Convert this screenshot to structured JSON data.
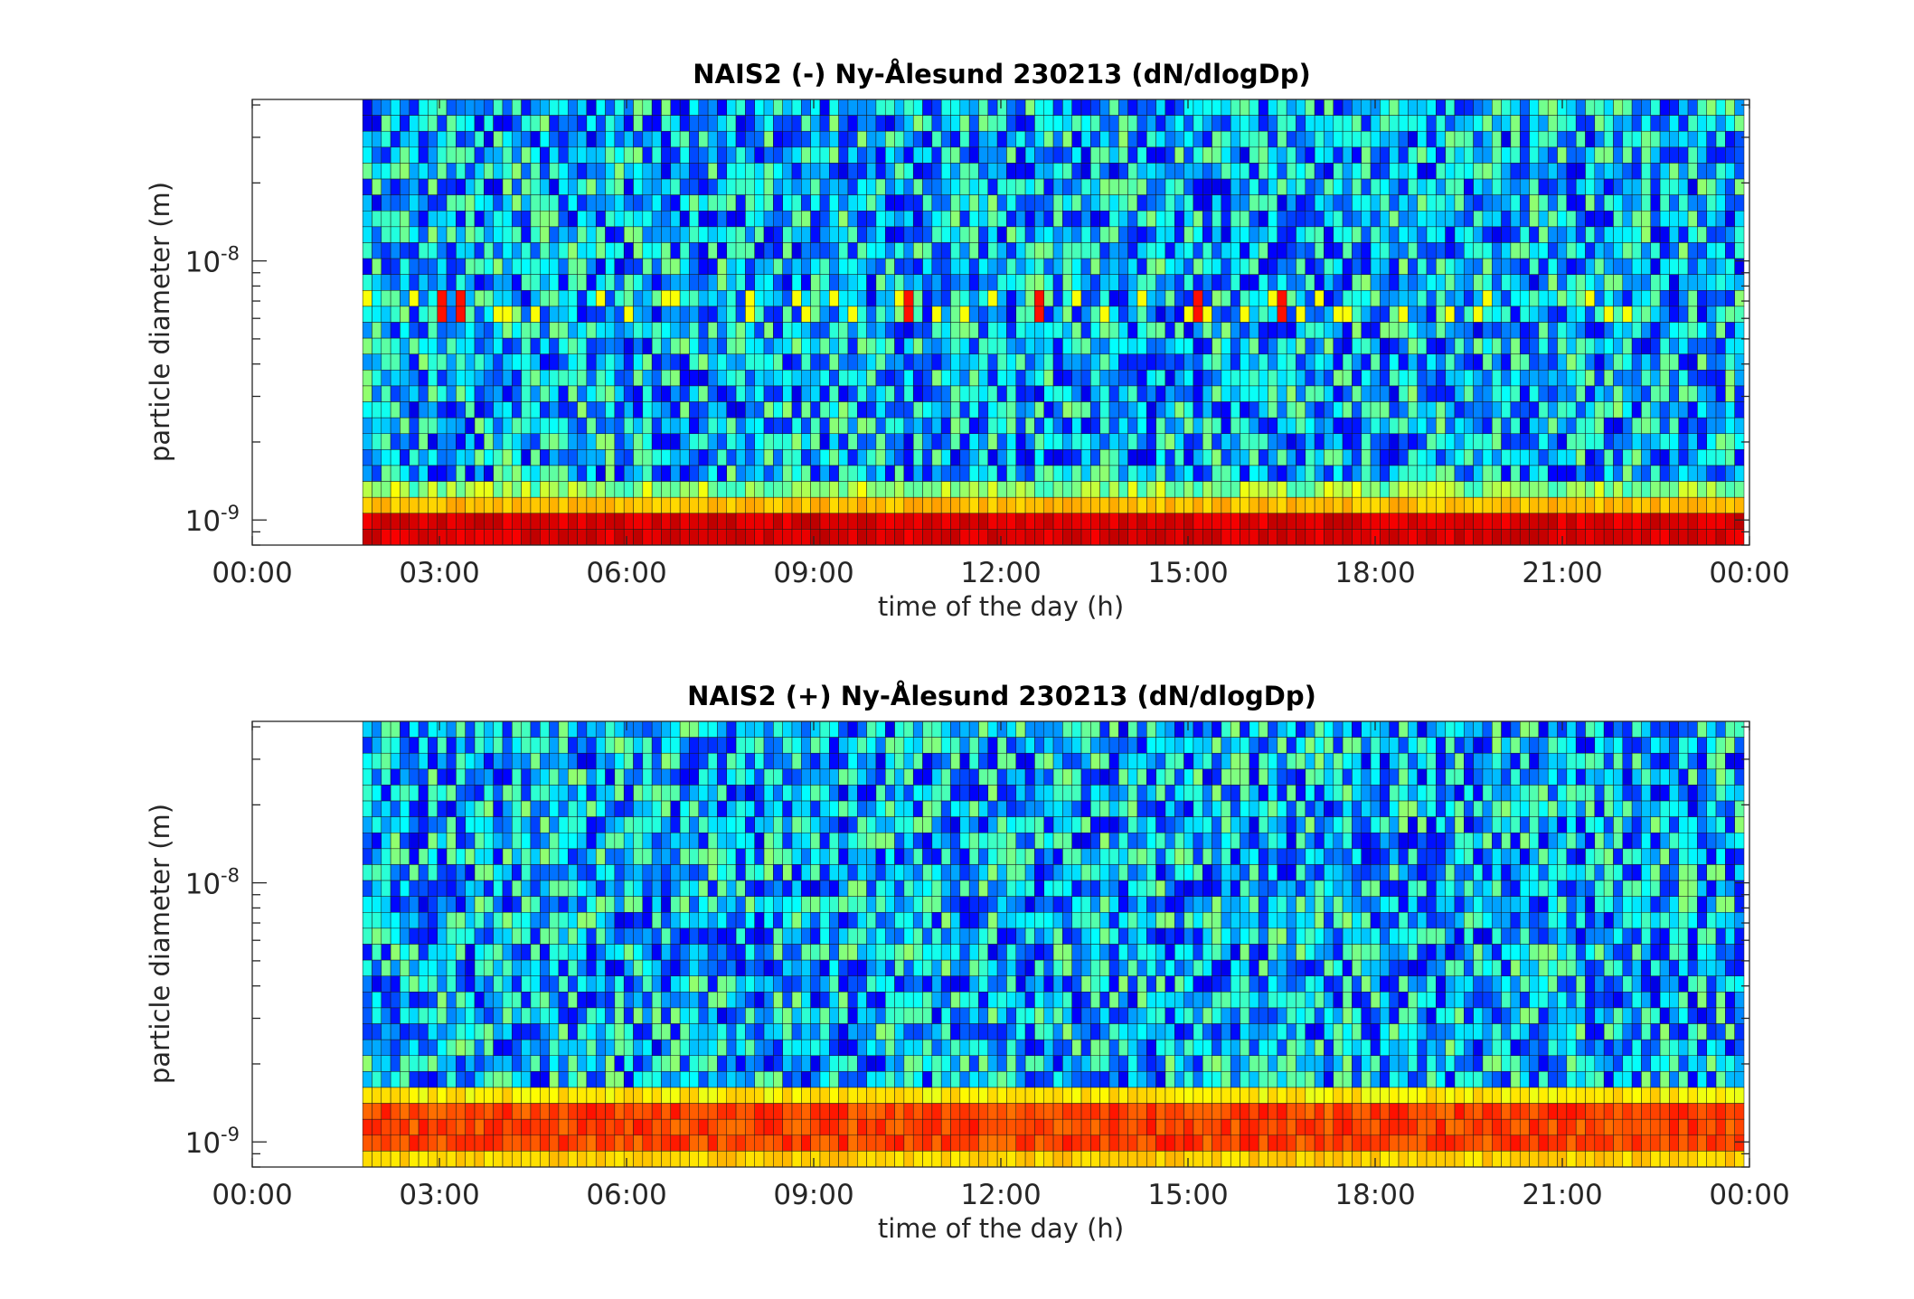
{
  "chart_data": [
    {
      "type": "heatmap",
      "title": "NAIS2 (-) Ny-Ålesund 230213 (dN/dlogDp)",
      "xlabel": "time of the day (h)",
      "ylabel": "particle diameter (m)",
      "x_ticks": [
        "00:00",
        "03:00",
        "06:00",
        "09:00",
        "12:00",
        "15:00",
        "18:00",
        "21:00",
        "00:00"
      ],
      "y_ticks": [
        {
          "base": "10",
          "exp": "-9",
          "value": 1e-09
        },
        {
          "base": "10",
          "exp": "-8",
          "value": 1e-08
        }
      ],
      "x_range_hours": [
        0,
        24
      ],
      "y_range_m": [
        8e-10,
        4.2e-08
      ],
      "y_scale": "log",
      "data_start_hour": 1.77,
      "colormap": "jet",
      "colors": [
        "#00008f",
        "#0000ff",
        "#0080ff",
        "#00ffff",
        "#80ff80",
        "#ffff00",
        "#ff8000",
        "#ff0000",
        "#800000"
      ],
      "hotspots": [
        {
          "hour": 3.0,
          "diameter_nm": 6.4
        },
        {
          "hour": 3.2,
          "diameter_nm": 6.4
        },
        {
          "hour": 10.4,
          "diameter_nm": 6.4
        },
        {
          "hour": 12.6,
          "diameter_nm": 6.4
        },
        {
          "hour": 15.1,
          "diameter_nm": 6.4
        },
        {
          "hour": 16.5,
          "diameter_nm": 6.4
        }
      ],
      "notes_levels": {
        "smallest_bins": "red",
        "second_bins": "yellow",
        "bulk": "blue"
      }
    },
    {
      "type": "heatmap",
      "title": "NAIS2 (+) Ny-Ålesund 230213 (dN/dlogDp)",
      "xlabel": "time of the day (h)",
      "ylabel": "particle diameter (m)",
      "x_ticks": [
        "00:00",
        "03:00",
        "06:00",
        "09:00",
        "12:00",
        "15:00",
        "18:00",
        "21:00",
        "00:00"
      ],
      "y_ticks": [
        {
          "base": "10",
          "exp": "-9",
          "value": 1e-09
        },
        {
          "base": "10",
          "exp": "-8",
          "value": 1e-08
        }
      ],
      "x_range_hours": [
        0,
        24
      ],
      "y_range_m": [
        8e-10,
        4.2e-08
      ],
      "y_scale": "log",
      "data_start_hour": 1.77,
      "colormap": "jet",
      "colors": [
        "#00008f",
        "#0000ff",
        "#0080ff",
        "#00ffff",
        "#80ff80",
        "#ffff00",
        "#ff8000",
        "#ff0000",
        "#800000"
      ],
      "hotspots": [],
      "notes_levels": {
        "smallest_bins": "orange-red",
        "second_bins": "yellow",
        "bulk": "blue"
      }
    }
  ]
}
